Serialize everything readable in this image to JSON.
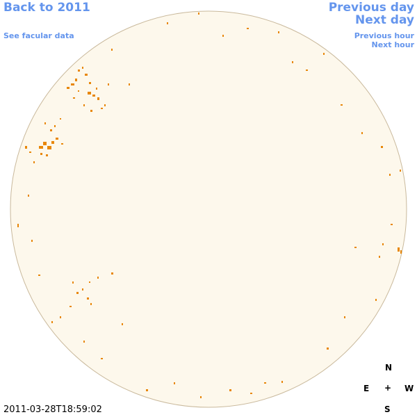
{
  "nav": {
    "back": "Back to 2011",
    "facular": "See facular data",
    "previous_day": "Previous day",
    "next_day": "Next day",
    "previous_hour": "Previous hour",
    "next_hour": "Next hour"
  },
  "compass": {
    "north": "N",
    "east": "E",
    "center": "+",
    "west": "W",
    "south": "S"
  },
  "timestamp": "2011-03-28T18:59:02"
}
